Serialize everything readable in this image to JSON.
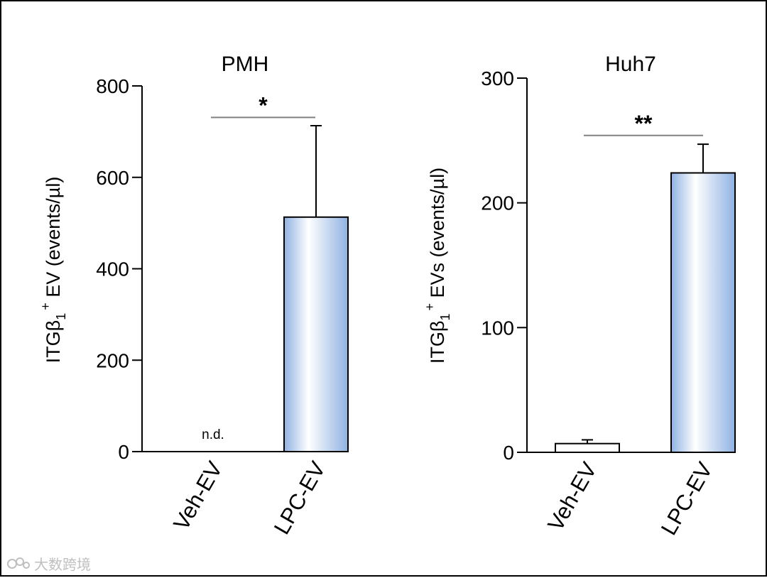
{
  "chart_data": [
    {
      "type": "bar",
      "title": "PMH",
      "ylabel_parts": [
        "ITGβ",
        "1",
        "+",
        " EV (events/µl)"
      ],
      "ylim": [
        0,
        800
      ],
      "yticks": [
        0,
        200,
        400,
        600,
        800
      ],
      "categories": [
        "Veh-EV",
        "LPC-EV"
      ],
      "values": [
        0,
        513
      ],
      "errors": [
        0,
        200
      ],
      "bar_styles": [
        "none",
        "gradient"
      ],
      "annotations": [
        {
          "category": "Veh-EV",
          "text": "n.d."
        }
      ],
      "significance": {
        "label": "*",
        "level": 731
      }
    },
    {
      "type": "bar",
      "title": "Huh7",
      "ylabel_parts": [
        "ITGβ",
        "1",
        "+",
        " EVs (events/µl)"
      ],
      "ylim": [
        0,
        300
      ],
      "yticks": [
        0,
        100,
        200,
        300
      ],
      "categories": [
        "Veh-EV",
        "LPC-EV"
      ],
      "values": [
        7,
        224
      ],
      "errors": [
        3,
        23
      ],
      "bar_styles": [
        "white",
        "gradient"
      ],
      "annotations": [],
      "significance": {
        "label": "**",
        "level": 254
      }
    }
  ],
  "colors": {
    "bar_gradient_edge": "#8fb2e2",
    "bar_gradient_center": "#ffffff",
    "bar_outline": "#000000",
    "bracket": "#808080",
    "frame": "#000000"
  },
  "watermark": "大数跨境"
}
